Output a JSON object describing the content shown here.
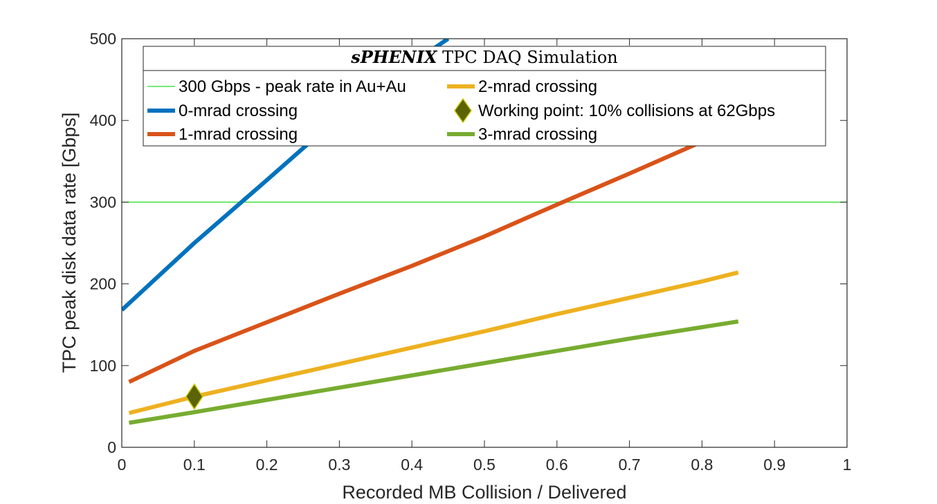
{
  "chart_data": {
    "type": "line",
    "title_bold": "sPHENIX",
    "title_rest": " TPC DAQ Simulation",
    "xlabel": "Recorded MB Collision / Delivered",
    "ylabel": "TPC peak disk data rate [Gbps]",
    "xlim": [
      0,
      1
    ],
    "ylim": [
      0,
      500
    ],
    "xticks": [
      "0",
      "0.1",
      "0.2",
      "0.3",
      "0.4",
      "0.5",
      "0.6",
      "0.7",
      "0.8",
      "0.9",
      "1"
    ],
    "yticks": [
      "0",
      "100",
      "200",
      "300",
      "400",
      "500"
    ],
    "grid": false,
    "legend_position": "top",
    "reference_line": {
      "name": "300 Gbps - peak rate in Au+Au",
      "y": 300,
      "color": "#22dd22"
    },
    "series": [
      {
        "name": "0-mrad crossing",
        "color": "#0072bd",
        "x": [
          0.0,
          0.1,
          0.2,
          0.3,
          0.4,
          0.45
        ],
        "y": [
          168,
          250,
          327,
          405,
          470,
          500
        ]
      },
      {
        "name": "1-mrad crossing",
        "color": "#d95319",
        "x": [
          0.01,
          0.1,
          0.2,
          0.3,
          0.4,
          0.5,
          0.6,
          0.7,
          0.8,
          0.85
        ],
        "y": [
          80,
          118,
          153,
          188,
          222,
          258,
          297,
          335,
          374,
          391
        ]
      },
      {
        "name": "2-mrad crossing",
        "color": "#edb120",
        "x": [
          0.01,
          0.1,
          0.2,
          0.3,
          0.4,
          0.5,
          0.6,
          0.7,
          0.8,
          0.85
        ],
        "y": [
          42,
          62,
          82,
          102,
          122,
          142,
          163,
          183,
          203,
          214
        ]
      },
      {
        "name": "3-mrad crossing",
        "color": "#77ac30",
        "x": [
          0.01,
          0.1,
          0.2,
          0.3,
          0.4,
          0.5,
          0.6,
          0.7,
          0.8,
          0.85
        ],
        "y": [
          30,
          43,
          58,
          73,
          88,
          103,
          118,
          133,
          147,
          154
        ]
      }
    ],
    "working_point": {
      "name": "Working point: 10% collisions at 62Gbps",
      "x": 0.1,
      "y": 62,
      "fill": "#5b6304",
      "stroke": "#c8c800"
    },
    "legend_order": [
      "ref",
      "s0",
      "s1",
      "s2",
      "wp",
      "s3"
    ]
  }
}
